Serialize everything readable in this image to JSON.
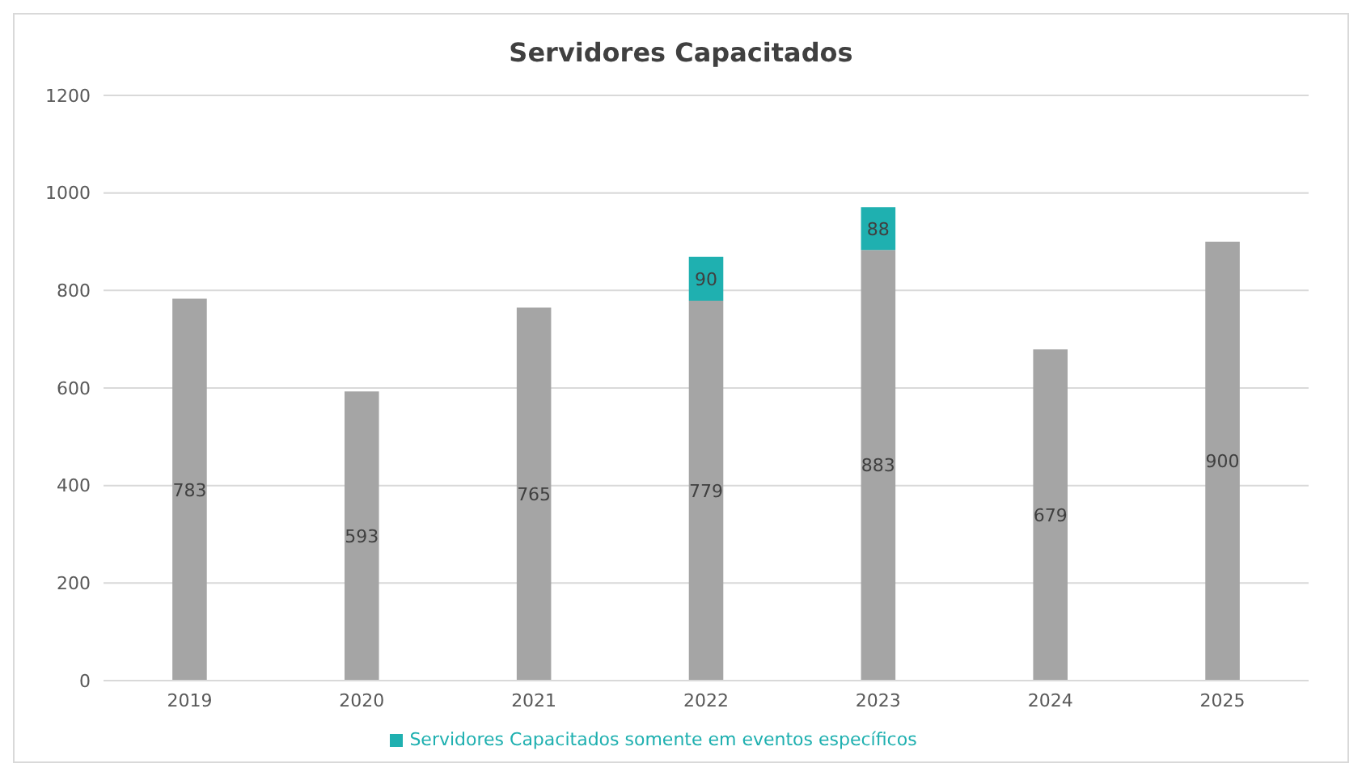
{
  "chart_data": {
    "type": "bar",
    "title": "Servidores Capacitados",
    "categories": [
      "2019",
      "2020",
      "2021",
      "2022",
      "2023",
      "2024",
      "2025"
    ],
    "stacked": true,
    "series": [
      {
        "color": "#a5a5a5",
        "values": [
          783,
          593,
          765,
          779,
          883,
          679,
          900
        ]
      },
      {
        "name": "Servidores Capacitados somente em eventos específicos",
        "color": "#1fb0b0",
        "values": [
          null,
          null,
          null,
          90,
          88,
          null,
          null
        ]
      }
    ],
    "ylim": [
      0,
      1200
    ],
    "yticks": [
      0,
      200,
      400,
      600,
      800,
      1000,
      1200
    ],
    "grid": "y",
    "legend": "bottom",
    "data_labels": true
  }
}
